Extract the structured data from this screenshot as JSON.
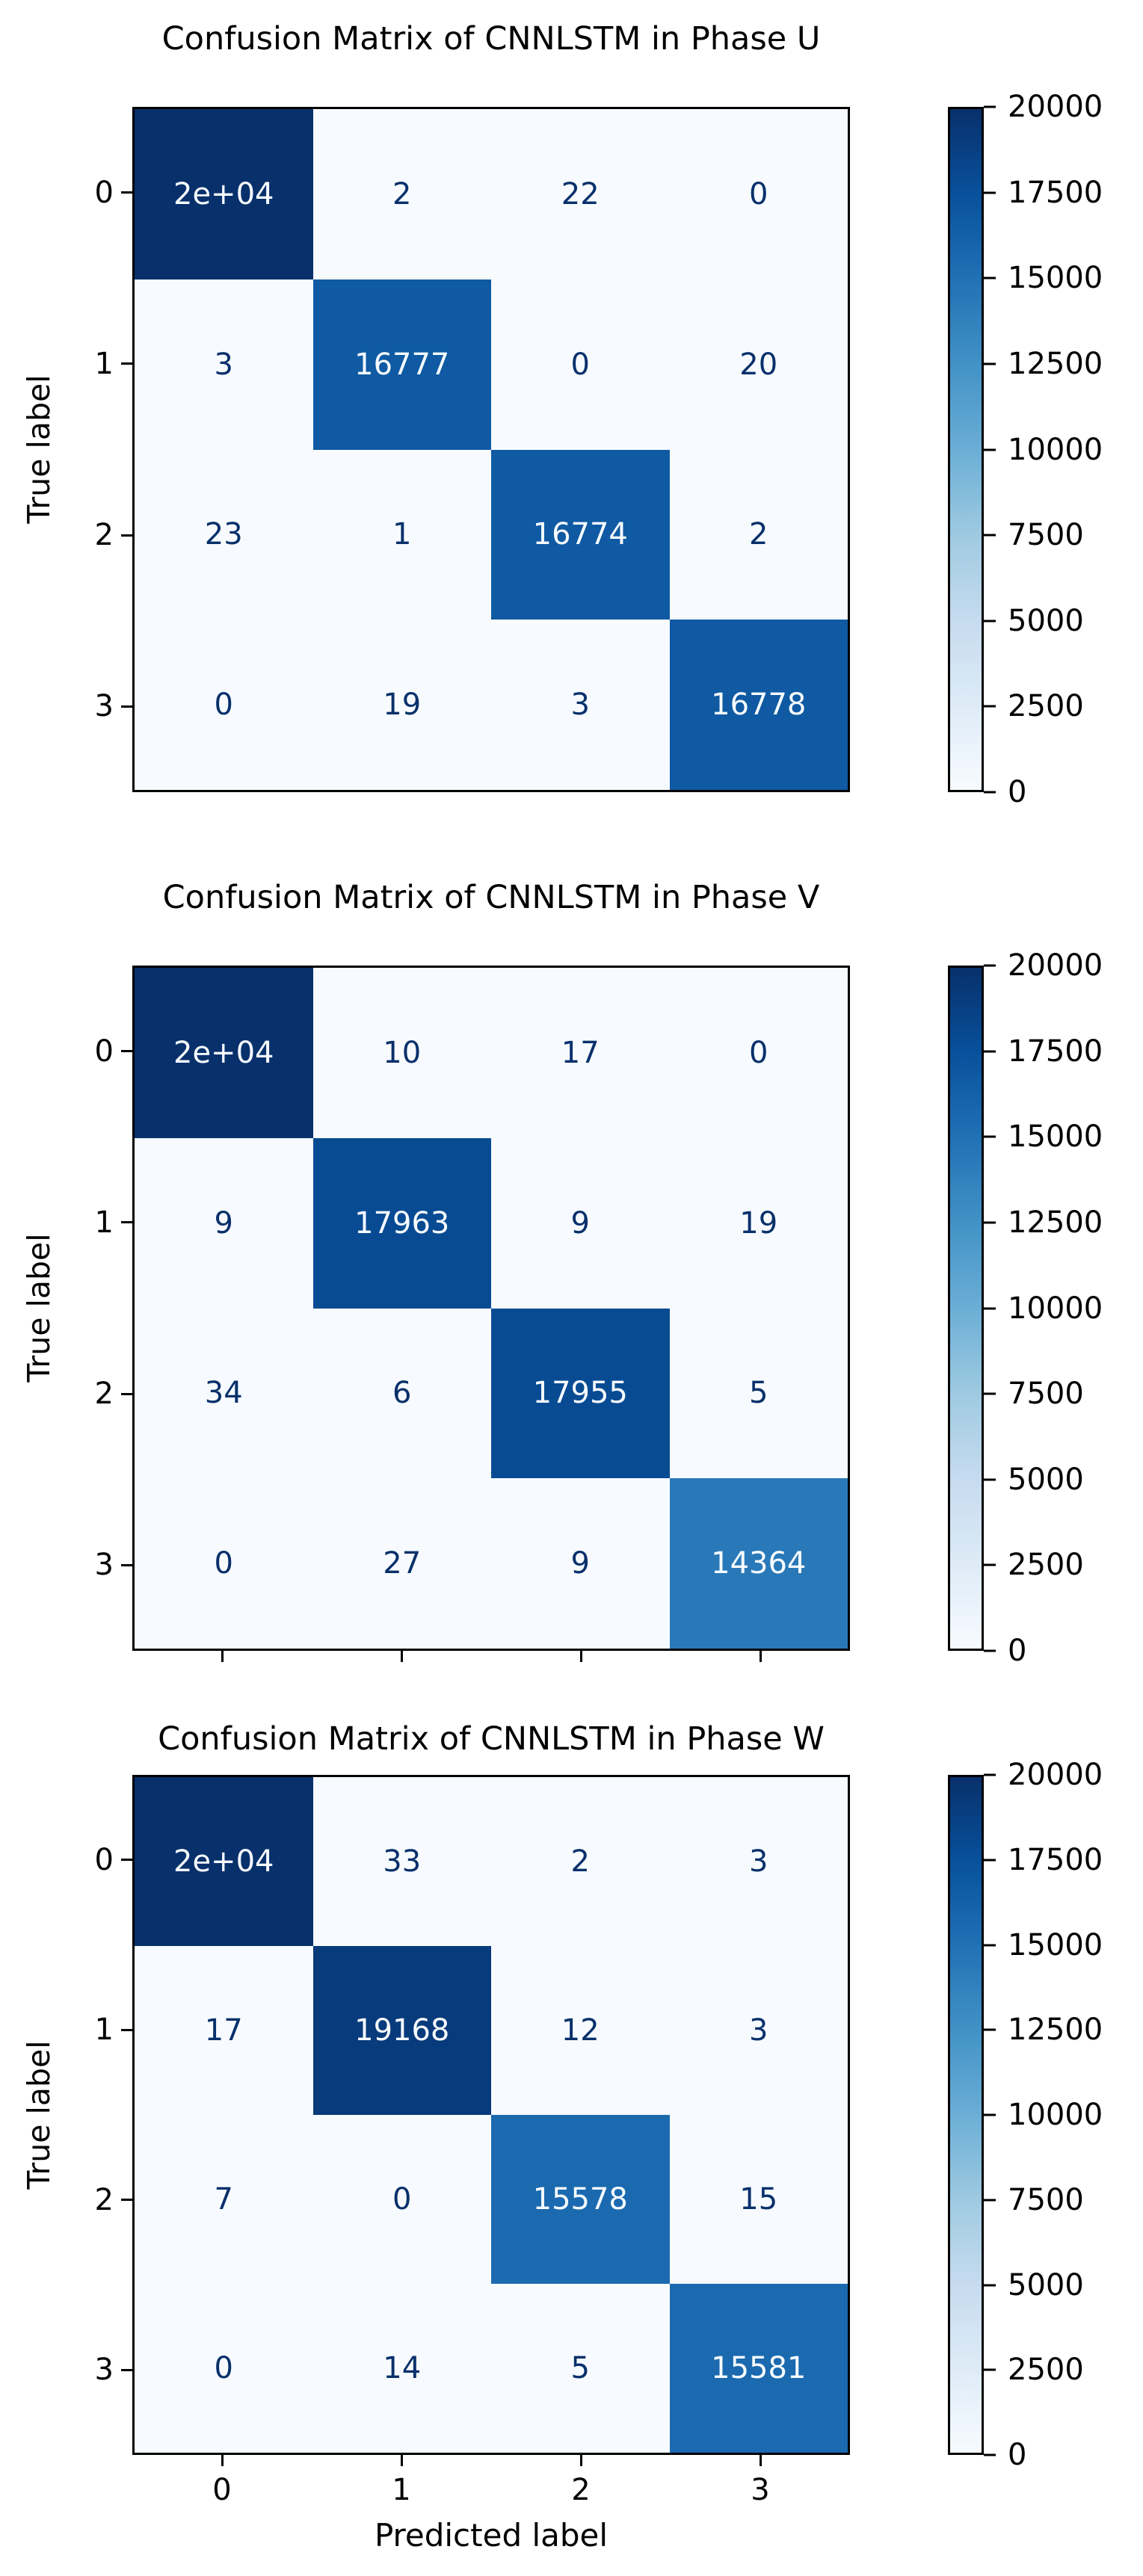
{
  "colors": {
    "background": "#ffffff",
    "axis_text": "#000000",
    "cell_text_low": "#08306b",
    "cell_text_high": "#f7fbff",
    "spine": "#000000",
    "colormap_name": "Blues",
    "colormap_stops": [
      "#f7fbff",
      "#deebf7",
      "#c6dbef",
      "#9ecae1",
      "#6baed6",
      "#4292c6",
      "#2171b5",
      "#08519c",
      "#08306b"
    ]
  },
  "colorbar": {
    "vmin": 0,
    "vmax": 20000,
    "tick_values": [
      0,
      2500,
      5000,
      7500,
      10000,
      12500,
      15000,
      17500,
      20000
    ],
    "tick_labels": [
      "0",
      "2500",
      "5000",
      "7500",
      "10000",
      "12500",
      "15000",
      "17500",
      "20000"
    ]
  },
  "chart_data": [
    {
      "type": "heatmap",
      "title": "Confusion Matrix of CNNLSTM in Phase U",
      "ylabel": "True label",
      "xlabel": "",
      "row_labels": [
        "0",
        "1",
        "2",
        "3"
      ],
      "col_labels": [
        "0",
        "1",
        "2",
        "3"
      ],
      "show_xticks": false,
      "show_xtick_labels": false,
      "cell_labels": [
        [
          "2e+04",
          "2",
          "22",
          "0"
        ],
        [
          "3",
          "16777",
          "0",
          "20"
        ],
        [
          "23",
          "1",
          "16774",
          "2"
        ],
        [
          "0",
          "19",
          "3",
          "16778"
        ]
      ],
      "cell_values": [
        [
          20000,
          2,
          22,
          0
        ],
        [
          3,
          16777,
          0,
          20
        ],
        [
          23,
          1,
          16774,
          2
        ],
        [
          0,
          19,
          3,
          16778
        ]
      ]
    },
    {
      "type": "heatmap",
      "title": "Confusion Matrix of CNNLSTM in Phase V",
      "ylabel": "True label",
      "xlabel": "",
      "row_labels": [
        "0",
        "1",
        "2",
        "3"
      ],
      "col_labels": [
        "0",
        "1",
        "2",
        "3"
      ],
      "show_xticks": true,
      "show_xtick_labels": false,
      "cell_labels": [
        [
          "2e+04",
          "10",
          "17",
          "0"
        ],
        [
          "9",
          "17963",
          "9",
          "19"
        ],
        [
          "34",
          "6",
          "17955",
          "5"
        ],
        [
          "0",
          "27",
          "9",
          "14364"
        ]
      ],
      "cell_values": [
        [
          20000,
          10,
          17,
          0
        ],
        [
          9,
          17963,
          9,
          19
        ],
        [
          34,
          6,
          17955,
          5
        ],
        [
          0,
          27,
          9,
          14364
        ]
      ]
    },
    {
      "type": "heatmap",
      "title": "Confusion Matrix of CNNLSTM in Phase W",
      "ylabel": "True label",
      "xlabel": "Predicted label",
      "row_labels": [
        "0",
        "1",
        "2",
        "3"
      ],
      "col_labels": [
        "0",
        "1",
        "2",
        "3"
      ],
      "show_xticks": true,
      "show_xtick_labels": true,
      "cell_labels": [
        [
          "2e+04",
          "33",
          "2",
          "3"
        ],
        [
          "17",
          "19168",
          "12",
          "3"
        ],
        [
          "7",
          "0",
          "15578",
          "15"
        ],
        [
          "0",
          "14",
          "5",
          "15581"
        ]
      ],
      "cell_values": [
        [
          20000,
          33,
          2,
          3
        ],
        [
          17,
          19168,
          12,
          3
        ],
        [
          7,
          0,
          15578,
          15
        ],
        [
          0,
          14,
          5,
          15581
        ]
      ]
    }
  ]
}
